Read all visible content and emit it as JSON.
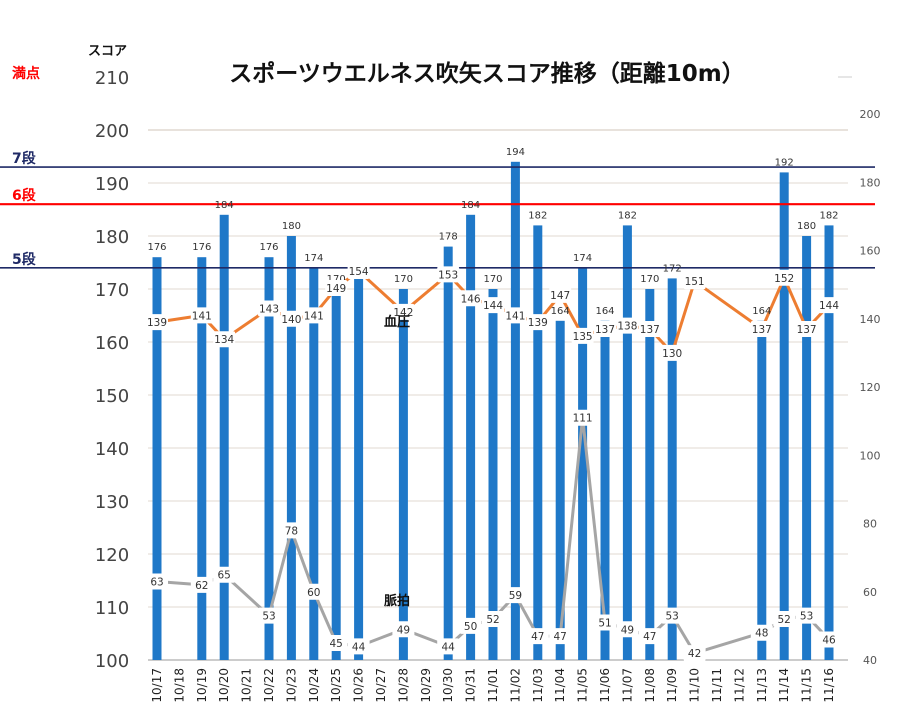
{
  "chart_data": {
    "type": "bar",
    "title": "スポーツウエルネス吹矢スコア推移（距離10m）",
    "ylabel": "スコア",
    "ylim": [
      100,
      210
    ],
    "yticks": [
      "100",
      "110",
      "120",
      "130",
      "140",
      "150",
      "160",
      "170",
      "180",
      "190",
      "200",
      "210"
    ],
    "y2lim": [
      40,
      200
    ],
    "y2ticks": [
      "40",
      "60",
      "80",
      "100",
      "120",
      "140",
      "160",
      "180",
      "200"
    ],
    "categories": [
      "10/17",
      "10/18",
      "10/19",
      "10/20",
      "10/21",
      "10/22",
      "10/23",
      "10/24",
      "10/25",
      "10/26",
      "10/27",
      "10/28",
      "10/29",
      "10/30",
      "10/31",
      "11/01",
      "11/02",
      "11/03",
      "11/04",
      "11/05",
      "11/06",
      "11/07",
      "11/08",
      "11/09",
      "11/10",
      "11/11",
      "11/12",
      "11/13",
      "11/14",
      "11/15",
      "11/16"
    ],
    "score": [
      176,
      null,
      176,
      184,
      null,
      176,
      180,
      174,
      170,
      172,
      null,
      170,
      null,
      178,
      184,
      170,
      194,
      182,
      164,
      174,
      164,
      182,
      170,
      172,
      null,
      null,
      null,
      164,
      192,
      180,
      182
    ],
    "series": [
      {
        "name": "血圧",
        "color": "#ED7D31",
        "values": [
          139,
          null,
          141,
          134,
          null,
          143,
          140,
          141,
          149,
          154,
          null,
          142,
          null,
          153,
          146,
          144,
          141,
          139,
          147,
          135,
          137,
          138,
          137,
          130,
          151,
          null,
          null,
          137,
          152,
          137,
          144
        ]
      },
      {
        "name": "脈拍",
        "color": "#A5A5A5",
        "values": [
          63,
          null,
          62,
          65,
          null,
          53,
          78,
          60,
          45,
          44,
          null,
          49,
          null,
          44,
          50,
          52,
          59,
          47,
          47,
          111,
          51,
          49,
          47,
          53,
          42,
          null,
          null,
          48,
          52,
          53,
          46
        ]
      }
    ],
    "reference_lines": [
      {
        "label": "満点",
        "value": 210,
        "color": "#FF0000"
      },
      {
        "label": "7段",
        "value": 193,
        "color": "#1F2A66"
      },
      {
        "label": "6段",
        "value": 186,
        "color": "#FF0000"
      },
      {
        "label": "5段",
        "value": 174,
        "color": "#1F2A66"
      }
    ],
    "bar_color": "#1F78C8"
  }
}
